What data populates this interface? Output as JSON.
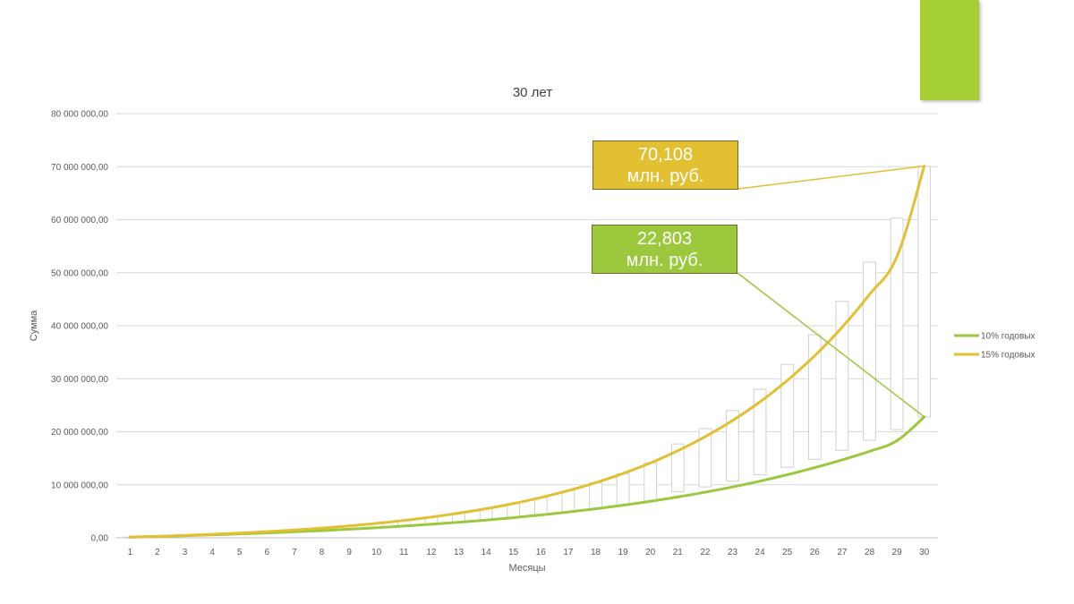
{
  "colors": {
    "series_10": "#9bc83c",
    "series_15": "#e3bf32",
    "accent": "#a5cf34",
    "grid": "#d9d9d9",
    "bar_fill": "#ffffff",
    "bar_stroke": "#d0d0d0",
    "callout_15_bg": "#e3bf32",
    "callout_10_bg": "#9bc83c"
  },
  "callouts": {
    "c15": {
      "line1": "70,108",
      "line2": "млн. руб."
    },
    "c10": {
      "line1": "22,803",
      "line2": "млн. руб."
    }
  },
  "chart_data": {
    "type": "line",
    "title": "30 лет",
    "xlabel": "Месяцы",
    "ylabel": "Сумма",
    "ylim": [
      0,
      80000000
    ],
    "yticks": [
      0,
      10000000,
      20000000,
      30000000,
      40000000,
      50000000,
      60000000,
      70000000,
      80000000
    ],
    "ytick_labels": [
      "0,00",
      "10 000 000,00",
      "20 000 000,00",
      "30 000 000,00",
      "40 000 000,00",
      "50 000 000,00",
      "60 000 000,00",
      "70 000 000,00",
      "80 000 000,00"
    ],
    "categories": [
      "1",
      "2",
      "3",
      "4",
      "5",
      "6",
      "7",
      "8",
      "9",
      "10",
      "11",
      "12",
      "13",
      "14",
      "15",
      "16",
      "17",
      "18",
      "19",
      "20",
      "21",
      "22",
      "23",
      "24",
      "25",
      "26",
      "27",
      "28",
      "29",
      "30"
    ],
    "grid": true,
    "legend_position": "right",
    "series": [
      {
        "name": "10% годовых",
        "values": [
          120000,
          250000,
          400000,
          560000,
          730000,
          920000,
          1130000,
          1360000,
          1620000,
          1900000,
          2210000,
          2550000,
          2930000,
          3340000,
          3800000,
          4300000,
          4860000,
          5470000,
          6140000,
          6880000,
          7700000,
          8600000,
          9590000,
          10690000,
          11900000,
          13230000,
          14700000,
          16310000,
          18300000,
          22803000
        ]
      },
      {
        "name": "15% годовых",
        "values": [
          130000,
          280000,
          450000,
          660000,
          890000,
          1160000,
          1470000,
          1830000,
          2240000,
          2720000,
          3270000,
          3900000,
          4640000,
          5480000,
          6460000,
          7590000,
          8890000,
          10390000,
          12120000,
          14120000,
          16420000,
          19070000,
          22120000,
          25630000,
          29680000,
          34340000,
          39710000,
          45900000,
          53020000,
          70108000
        ]
      }
    ],
    "floating_bars": {
      "low": [
        120000,
        250000,
        400000,
        560000,
        730000,
        920000,
        1130000,
        1360000,
        1620000,
        1900000,
        2210000,
        2550000,
        2930000,
        3340000,
        3800000,
        4300000,
        4860000,
        5470000,
        6140000,
        6880000,
        8700000,
        9600000,
        10700000,
        11900000,
        13300000,
        14800000,
        16500000,
        18400000,
        20400000,
        22800000
      ],
      "high": [
        130000,
        280000,
        450000,
        660000,
        890000,
        1160000,
        1470000,
        1830000,
        2240000,
        2720000,
        3270000,
        3900000,
        4640000,
        5480000,
        6460000,
        7590000,
        8890000,
        10390000,
        12120000,
        14120000,
        17700000,
        20600000,
        24000000,
        28000000,
        32700000,
        38300000,
        44600000,
        52000000,
        60300000,
        70100000
      ]
    }
  }
}
